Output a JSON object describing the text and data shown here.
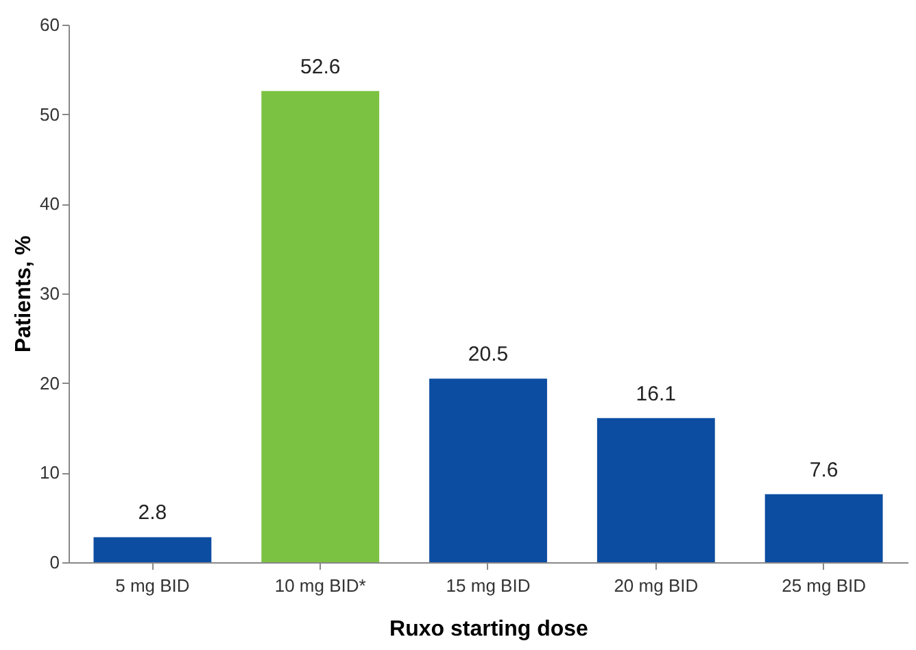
{
  "chart_data": {
    "type": "bar",
    "categories": [
      "5 mg BID",
      "10 mg BID*",
      "15 mg BID",
      "20 mg BID",
      "25 mg BID"
    ],
    "values": [
      2.8,
      52.6,
      20.5,
      16.1,
      7.6
    ],
    "colors": [
      "#0c4da2",
      "#7cc242",
      "#0c4da2",
      "#0c4da2",
      "#0c4da2"
    ],
    "ylim": [
      0,
      60
    ],
    "yticks": [
      0,
      10,
      20,
      30,
      40,
      50,
      60
    ],
    "ylabel": "Patients, %",
    "xlabel": "Ruxo starting dose",
    "data_labels": true,
    "grid": false
  }
}
